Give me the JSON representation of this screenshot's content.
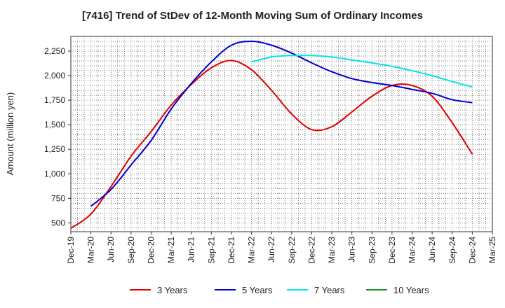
{
  "chart_data": {
    "type": "line",
    "title": "[7416]  Trend of StDev of 12-Month Moving Sum of Ordinary Incomes",
    "xlabel": "",
    "ylabel": "Amount (million yen)",
    "ylim": [
      410,
      2400
    ],
    "yticks": [
      500,
      750,
      1000,
      1250,
      1500,
      1750,
      2000,
      2250
    ],
    "ytick_labels": [
      "500",
      "750",
      "1,000",
      "1,250",
      "1,500",
      "1,750",
      "2,000",
      "2,250"
    ],
    "categories": [
      "Dec-19",
      "Mar-20",
      "Jun-20",
      "Sep-20",
      "Dec-20",
      "Mar-21",
      "Jun-21",
      "Sep-21",
      "Dec-21",
      "Mar-22",
      "Jun-22",
      "Sep-22",
      "Dec-22",
      "Mar-23",
      "Jun-23",
      "Sep-23",
      "Dec-23",
      "Mar-24",
      "Jun-24",
      "Sep-24",
      "Dec-24",
      "Mar-25"
    ],
    "grid": true,
    "legend": "bottom",
    "series": [
      {
        "name": "3 Years",
        "color": "#dd0000",
        "values": [
          445,
          590,
          870,
          1180,
          1430,
          1700,
          1910,
          2080,
          2155,
          2060,
          1850,
          1610,
          1450,
          1480,
          1630,
          1790,
          1900,
          1900,
          1790,
          1520,
          1200,
          null
        ]
      },
      {
        "name": "5 Years",
        "color": "#0000cc",
        "values": [
          null,
          670,
          840,
          1090,
          1340,
          1660,
          1920,
          2140,
          2310,
          2350,
          2310,
          2230,
          2130,
          2040,
          1970,
          1930,
          1900,
          1860,
          1820,
          1755,
          1725,
          null
        ]
      },
      {
        "name": "7 Years",
        "color": "#00e5e5",
        "values": [
          null,
          null,
          null,
          null,
          null,
          null,
          null,
          null,
          null,
          2140,
          2190,
          2205,
          2205,
          2190,
          2160,
          2130,
          2095,
          2050,
          2000,
          1940,
          1885,
          null
        ]
      },
      {
        "name": "10 Years",
        "color": "#228b22",
        "values": [
          null,
          null,
          null,
          null,
          null,
          null,
          null,
          null,
          null,
          null,
          null,
          null,
          null,
          null,
          null,
          null,
          null,
          null,
          null,
          null,
          null,
          null
        ]
      }
    ]
  }
}
